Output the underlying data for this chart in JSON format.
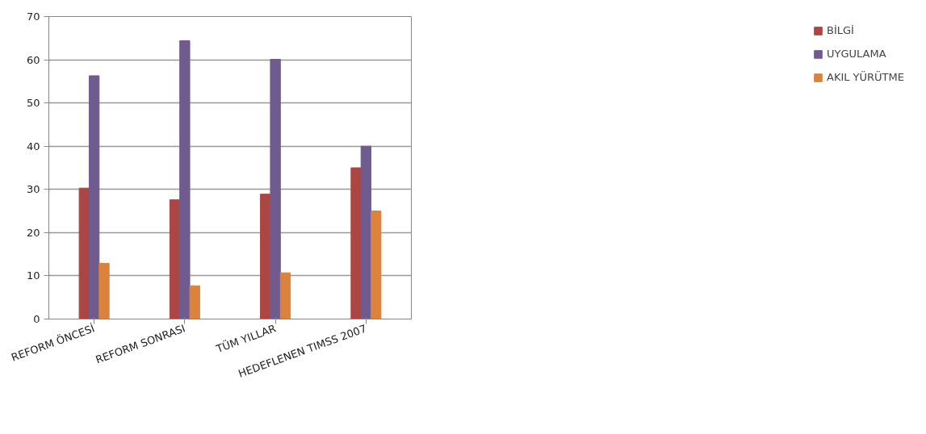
{
  "chart_data": {
    "type": "bar",
    "categories": [
      "REFORM ÖNCESİ",
      "REFORM SONRASI",
      "TÜM YILLAR",
      "HEDEFLENEN TIMSS 2007"
    ],
    "series": [
      {
        "name": "BİLGİ",
        "color": "#ab4643",
        "values": [
          30.3,
          27.6,
          28.9,
          35
        ]
      },
      {
        "name": "UYGULAMA",
        "color": "#705b8f",
        "values": [
          56.3,
          64.4,
          60.1,
          40
        ]
      },
      {
        "name": "AKIL YÜRÜTME",
        "color": "#db823c",
        "values": [
          12.9,
          7.7,
          10.7,
          25
        ]
      }
    ],
    "ylim": [
      0,
      70
    ],
    "yticks": [
      0,
      10,
      20,
      30,
      40,
      50,
      60,
      70
    ],
    "grid": "y",
    "legend": "right"
  }
}
